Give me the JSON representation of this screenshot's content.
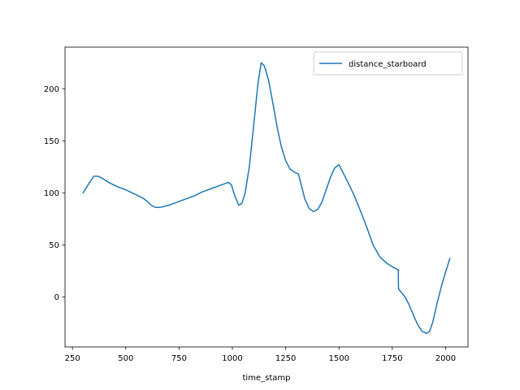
{
  "chart_data": {
    "type": "line",
    "title": "",
    "xlabel": "time_stamp",
    "ylabel": "",
    "xlim": [
      215,
      2105
    ],
    "ylim": [
      -48,
      240
    ],
    "x_ticks": [
      250,
      500,
      750,
      1000,
      1250,
      1500,
      1750,
      2000
    ],
    "y_ticks": [
      0,
      50,
      100,
      150,
      200
    ],
    "grid": false,
    "legend": {
      "position": "top-right",
      "entries": [
        "distance_starboard"
      ]
    },
    "colors": {
      "series": "#1f77b4",
      "axis": "#000000",
      "background": "#ffffff"
    },
    "series": [
      {
        "name": "distance_starboard",
        "x": [
          300,
          330,
          350,
          370,
          390,
          420,
          460,
          500,
          540,
          580,
          600,
          620,
          640,
          660,
          700,
          740,
          780,
          820,
          860,
          900,
          940,
          980,
          995,
          1010,
          1030,
          1045,
          1060,
          1080,
          1100,
          1120,
          1135,
          1150,
          1170,
          1190,
          1210,
          1230,
          1250,
          1270,
          1290,
          1310,
          1320,
          1340,
          1360,
          1380,
          1400,
          1420,
          1440,
          1460,
          1480,
          1500,
          1520,
          1540,
          1570,
          1600,
          1630,
          1660,
          1690,
          1720,
          1750,
          1778,
          1779,
          1790,
          1810,
          1830,
          1850,
          1870,
          1890,
          1910,
          1925,
          1940,
          1960,
          1980,
          2000,
          2020
        ],
        "values": [
          100,
          110,
          116,
          116,
          114,
          110,
          106,
          103,
          99,
          95,
          92,
          88,
          86,
          86,
          88,
          91,
          94,
          97,
          101,
          104,
          107,
          110,
          108,
          98,
          88,
          90,
          100,
          126,
          165,
          205,
          225,
          222,
          208,
          186,
          163,
          144,
          131,
          123,
          120,
          118,
          110,
          94,
          85,
          82,
          84,
          91,
          103,
          115,
          124,
          127,
          119,
          111,
          98,
          83,
          67,
          50,
          39,
          33,
          29,
          26,
          8,
          5,
          0,
          -8,
          -18,
          -27,
          -33,
          -35,
          -33,
          -24,
          -6,
          10,
          24,
          37
        ]
      }
    ]
  }
}
